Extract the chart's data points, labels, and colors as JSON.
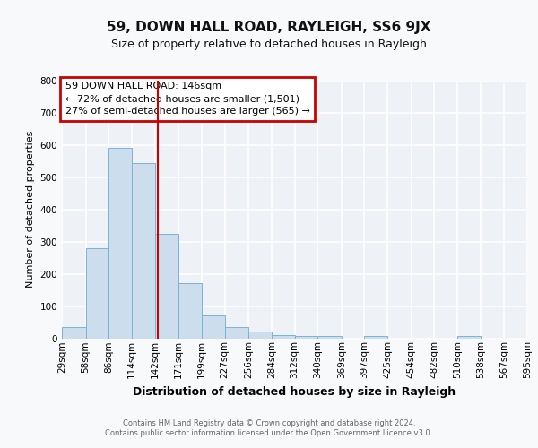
{
  "title": "59, DOWN HALL ROAD, RAYLEIGH, SS6 9JX",
  "subtitle": "Size of property relative to detached houses in Rayleigh",
  "xlabel": "Distribution of detached houses by size in Rayleigh",
  "ylabel": "Number of detached properties",
  "bin_labels": [
    "29sqm",
    "58sqm",
    "86sqm",
    "114sqm",
    "142sqm",
    "171sqm",
    "199sqm",
    "227sqm",
    "256sqm",
    "284sqm",
    "312sqm",
    "340sqm",
    "369sqm",
    "397sqm",
    "425sqm",
    "454sqm",
    "482sqm",
    "510sqm",
    "538sqm",
    "567sqm",
    "595sqm"
  ],
  "bin_edges": [
    29,
    58,
    86,
    114,
    142,
    171,
    199,
    227,
    256,
    284,
    312,
    340,
    369,
    397,
    425,
    454,
    482,
    510,
    538,
    567,
    595
  ],
  "bar_heights": [
    35,
    280,
    590,
    545,
    325,
    170,
    70,
    35,
    20,
    10,
    8,
    8,
    0,
    8,
    0,
    0,
    0,
    8,
    0,
    0
  ],
  "bar_color": "#ccdded",
  "bar_edge_color": "#7ab4d4",
  "red_line_x": 146,
  "red_line_color": "#cc0000",
  "ylim": [
    0,
    800
  ],
  "yticks": [
    0,
    100,
    200,
    300,
    400,
    500,
    600,
    700,
    800
  ],
  "annotation_text": "59 DOWN HALL ROAD: 146sqm\n← 72% of detached houses are smaller (1,501)\n27% of semi-detached houses are larger (565) →",
  "annotation_box_edgecolor": "#cc0000",
  "annotation_box_facecolor": "#ffffff",
  "footer_text": "Contains HM Land Registry data © Crown copyright and database right 2024.\nContains public sector information licensed under the Open Government Licence v3.0.",
  "fig_facecolor": "#f8f9fa",
  "plot_facecolor": "#eef2f7",
  "grid_color": "#ffffff",
  "title_fontsize": 11,
  "subtitle_fontsize": 9,
  "xlabel_fontsize": 9,
  "ylabel_fontsize": 8,
  "tick_fontsize": 7.5,
  "footer_fontsize": 6,
  "annotation_fontsize": 8
}
